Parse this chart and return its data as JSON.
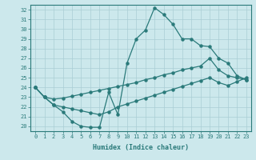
{
  "xlabel": "Humidex (Indice chaleur)",
  "bg_color": "#cce8ec",
  "grid_color": "#aacdd4",
  "line_color": "#2a7a7a",
  "xlim": [
    -0.5,
    23.5
  ],
  "ylim": [
    19.5,
    32.5
  ],
  "xticks": [
    0,
    1,
    2,
    3,
    4,
    5,
    6,
    7,
    8,
    9,
    10,
    11,
    12,
    13,
    14,
    15,
    16,
    17,
    18,
    19,
    20,
    21,
    22,
    23
  ],
  "yticks": [
    20,
    21,
    22,
    23,
    24,
    25,
    26,
    27,
    28,
    29,
    30,
    31,
    32
  ],
  "series1_x": [
    0,
    1,
    2,
    3,
    4,
    5,
    6,
    7,
    8,
    9,
    10,
    11,
    12,
    13,
    14,
    15,
    16,
    17,
    18,
    19,
    20,
    21,
    22,
    23
  ],
  "series1_y": [
    24.0,
    23.0,
    22.2,
    21.5,
    20.5,
    20.0,
    19.9,
    19.9,
    23.5,
    21.2,
    26.5,
    29.0,
    29.9,
    32.2,
    31.5,
    30.5,
    29.0,
    29.0,
    28.3,
    28.2,
    27.0,
    26.5,
    25.2,
    24.8
  ],
  "series2_x": [
    0,
    1,
    2,
    3,
    4,
    5,
    6,
    7,
    8,
    9,
    10,
    11,
    12,
    13,
    14,
    15,
    16,
    17,
    18,
    19,
    20,
    21,
    22,
    23
  ],
  "series2_y": [
    24.0,
    23.0,
    22.8,
    22.9,
    23.1,
    23.3,
    23.5,
    23.7,
    23.9,
    24.1,
    24.3,
    24.5,
    24.8,
    25.0,
    25.3,
    25.5,
    25.8,
    26.0,
    26.2,
    27.0,
    25.8,
    25.2,
    25.0,
    24.8
  ],
  "series3_x": [
    0,
    1,
    2,
    3,
    4,
    5,
    6,
    7,
    8,
    9,
    10,
    11,
    12,
    13,
    14,
    15,
    16,
    17,
    18,
    19,
    20,
    21,
    22,
    23
  ],
  "series3_y": [
    24.0,
    23.0,
    22.2,
    22.0,
    21.8,
    21.6,
    21.4,
    21.2,
    21.5,
    22.0,
    22.3,
    22.6,
    22.9,
    23.2,
    23.5,
    23.8,
    24.1,
    24.4,
    24.7,
    25.0,
    24.5,
    24.2,
    24.6,
    25.0
  ]
}
